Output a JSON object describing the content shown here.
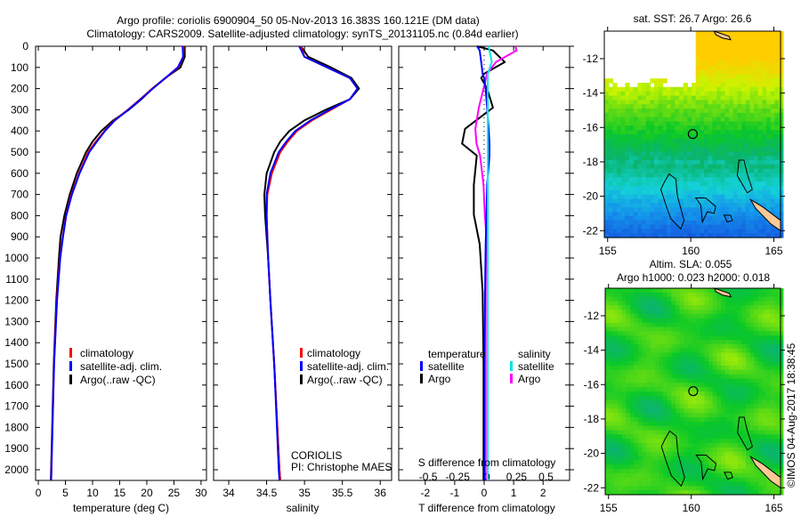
{
  "title": {
    "line1": "Argo profile: coriolis 6900904_50 05-Nov-2013 16.383S 160.121E (DM data)",
    "line2": "Climatology: CARS2009. Satellite-adjusted climatology: synTS_20131105.nc (0.84d earlier)"
  },
  "profile": {
    "lat": -16.383,
    "lon": 160.121
  },
  "colors": {
    "climatology": "#ff0000",
    "satellite": "#0000ff",
    "argo": "#000000",
    "sal_satellite": "#00e5e5",
    "sal_argo": "#ff00ff"
  },
  "legend_ts": {
    "climatology": "climatology",
    "satellite": "satellite-adj. clim.",
    "argo": "Argo(..raw -QC)"
  },
  "legend_diff": {
    "temperature": "temperature",
    "salinity": "salinity",
    "t_satellite": "satellite",
    "t_argo": "Argo",
    "s_satellite": "satellite",
    "s_argo": "Argo"
  },
  "credit": {
    "institution": "CORIOLIS",
    "pi": "PI: Christophe MAES"
  },
  "timestamp": "©IMOS 04-Aug-2017 18:38:45",
  "chart_data": [
    {
      "type": "line",
      "name": "temperature",
      "xlabel": "temperature (deg C)",
      "ylabel": "",
      "xlim": [
        -0.5,
        31
      ],
      "ylim": [
        2050,
        0
      ],
      "xticks": [
        0,
        5,
        10,
        15,
        20,
        25,
        30
      ],
      "yticks": [
        0,
        100,
        200,
        300,
        400,
        500,
        600,
        700,
        800,
        900,
        1000,
        1100,
        1200,
        1300,
        1400,
        1500,
        1600,
        1700,
        1800,
        1900,
        2000
      ],
      "depth": [
        0,
        50,
        100,
        150,
        200,
        250,
        300,
        350,
        400,
        450,
        500,
        600,
        700,
        800,
        900,
        1000,
        1200,
        1500,
        2000,
        2050
      ],
      "series": [
        {
          "name": "climatology",
          "values": [
            26.8,
            26.7,
            25.8,
            23.5,
            21,
            18.8,
            16.5,
            14,
            12.2,
            10.6,
            9.2,
            7.5,
            6.1,
            5.1,
            4.5,
            4.0,
            3.4,
            2.9,
            2.4,
            2.35
          ]
        },
        {
          "name": "satellite-adj. clim.",
          "values": [
            26.6,
            26.7,
            25.7,
            23.4,
            21.1,
            18.9,
            16.6,
            14.1,
            12.3,
            10.8,
            9.4,
            7.6,
            6.2,
            5.15,
            4.55,
            4.05,
            3.45,
            2.92,
            2.42,
            2.37
          ]
        },
        {
          "name": "Argo(..raw -QC)",
          "values": [
            27,
            27,
            26.2,
            23.4,
            21,
            19,
            16.7,
            13.8,
            11.6,
            10,
            8.8,
            7.1,
            5.8,
            4.8,
            4.1,
            3.8,
            3.3,
            2.85,
            2.35,
            2.3
          ]
        }
      ]
    },
    {
      "type": "line",
      "name": "salinity",
      "xlabel": "salinity",
      "xlim": [
        33.8,
        36.15
      ],
      "ylim": [
        2050,
        0
      ],
      "xticks": [
        34,
        34.5,
        35,
        35.5,
        36
      ],
      "depth": [
        0,
        50,
        100,
        150,
        200,
        250,
        300,
        350,
        400,
        450,
        500,
        600,
        700,
        800,
        900,
        1000,
        1200,
        1500,
        2000,
        2050
      ],
      "series": [
        {
          "name": "climatology",
          "values": [
            34.95,
            35.0,
            35.3,
            35.6,
            35.7,
            35.6,
            35.35,
            35.1,
            34.9,
            34.78,
            34.68,
            34.57,
            34.51,
            34.5,
            34.51,
            34.52,
            34.55,
            34.6,
            34.67,
            34.68
          ]
        },
        {
          "name": "satellite-adj. clim.",
          "values": [
            34.93,
            35.0,
            35.3,
            35.6,
            35.7,
            35.6,
            35.33,
            35.08,
            34.88,
            34.76,
            34.66,
            34.55,
            34.5,
            34.5,
            34.51,
            34.52,
            34.55,
            34.6,
            34.66,
            34.67
          ]
        },
        {
          "name": "Argo(..raw -QC)",
          "values": [
            34.95,
            35.05,
            35.35,
            35.62,
            35.72,
            35.6,
            35.28,
            35.0,
            34.8,
            34.68,
            34.6,
            34.5,
            34.47,
            34.48,
            34.5,
            34.52,
            34.55,
            34.6,
            34.67,
            34.68
          ]
        }
      ]
    },
    {
      "type": "line",
      "name": "difference",
      "xlabel": "T difference from climatology",
      "xlabel_top": "S difference from climatology",
      "xlim": [
        -2.9,
        2.9
      ],
      "s_xlim": [
        -0.75,
        0.7
      ],
      "ylim": [
        2050,
        0
      ],
      "xticks": [
        -2,
        -1,
        0,
        1,
        2
      ],
      "s_xticks": [
        -0.5,
        -0.25,
        0,
        0.25,
        0.5
      ],
      "depth": [
        0,
        20,
        75,
        130,
        150,
        200,
        290,
        390,
        460,
        516,
        655,
        795,
        935,
        1160,
        1500,
        2050
      ],
      "series": [
        {
          "name": "temperature satellite",
          "axis": "T",
          "values": [
            -0.24,
            -0.15,
            -0.1,
            -0.05,
            0,
            0.05,
            0.1,
            0.15,
            0.18,
            0.18,
            0.1,
            0.08,
            0.05,
            0.03,
            0.02,
            0.02
          ]
        },
        {
          "name": "temperature Argo",
          "axis": "T",
          "values": [
            -0.24,
            0.3,
            0.7,
            0,
            -0.1,
            0.1,
            0.3,
            -0.65,
            -0.75,
            -0.25,
            -0.35,
            -0.35,
            -0.15,
            -0.05,
            -0.02,
            -0.02
          ]
        },
        {
          "name": "salinity satellite",
          "axis": "S",
          "values": [
            0.01,
            0.02,
            0.04,
            0.005,
            0.005,
            0.005,
            0.005,
            0.005,
            0.005,
            0.005,
            0.005,
            0.005,
            0.005,
            0.005,
            0.005,
            0.005
          ]
        },
        {
          "name": "salinity Argo",
          "axis": "S",
          "values": [
            0.24,
            0.25,
            0.075,
            0,
            -0.01,
            -0.03,
            -0.07,
            -0.1,
            -0.09,
            -0.06,
            -0.03,
            -0.02,
            0,
            0,
            0,
            0
          ]
        }
      ]
    },
    {
      "type": "heatmap",
      "name": "sst-map",
      "title": "sat. SST: 26.7 Argo: 26.6",
      "xlim": [
        154.8,
        165.4
      ],
      "ylim": [
        -22.4,
        -10.4
      ],
      "xticks": [
        "155",
        "160",
        "165"
      ],
      "yticks": [
        "-12",
        "-14",
        "-16",
        "-18",
        "-20",
        "-22"
      ]
    },
    {
      "type": "heatmap",
      "name": "sla-map",
      "title": "Altim. SLA: 0.055",
      "subtitle": "Argo h1000: 0.023 h2000: 0.018",
      "xlim": [
        154.8,
        165.4
      ],
      "ylim": [
        -22.4,
        -10.4
      ],
      "xticks": [
        "155",
        "160",
        "165"
      ],
      "yticks": [
        "-12",
        "-14",
        "-16",
        "-18",
        "-20",
        "-22"
      ]
    }
  ]
}
